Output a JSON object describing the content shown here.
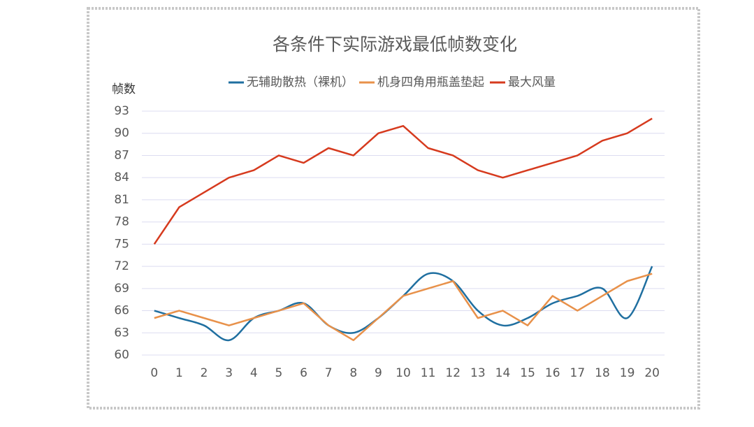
{
  "chart_data": {
    "type": "line",
    "title": "各条件下实际游戏最低帧数变化",
    "y_label": "帧数",
    "categories": [
      "0",
      "1",
      "2",
      "3",
      "4",
      "5",
      "6",
      "7",
      "8",
      "9",
      "10",
      "11",
      "12",
      "13",
      "14",
      "15",
      "16",
      "17",
      "18",
      "19",
      "20"
    ],
    "series": [
      {
        "name": "无辅助散热（裸机）",
        "color": "#1f6fa0",
        "smooth": true,
        "values": [
          66,
          65,
          64,
          62,
          65,
          66,
          67,
          64,
          63,
          65,
          68,
          71,
          70,
          66,
          64,
          65,
          67,
          68,
          69,
          65,
          72
        ]
      },
      {
        "name": "机身四角用瓶盖垫起",
        "color": "#e8914a",
        "smooth": false,
        "values": [
          65,
          66,
          65,
          64,
          65,
          66,
          67,
          64,
          62,
          65,
          68,
          69,
          70,
          65,
          66,
          64,
          68,
          66,
          68,
          70,
          71
        ]
      },
      {
        "name": "最大风量",
        "color": "#d63a1e",
        "smooth": false,
        "values": [
          75,
          80,
          82,
          84,
          85,
          87,
          86,
          88,
          87,
          90,
          91,
          88,
          87,
          85,
          84,
          85,
          86,
          87,
          89,
          90,
          92
        ]
      }
    ],
    "ylim": [
      60,
      93
    ],
    "yticks": [
      60,
      63,
      66,
      69,
      72,
      75,
      78,
      81,
      84,
      87,
      90,
      93
    ],
    "grid": true,
    "legend": "top"
  }
}
